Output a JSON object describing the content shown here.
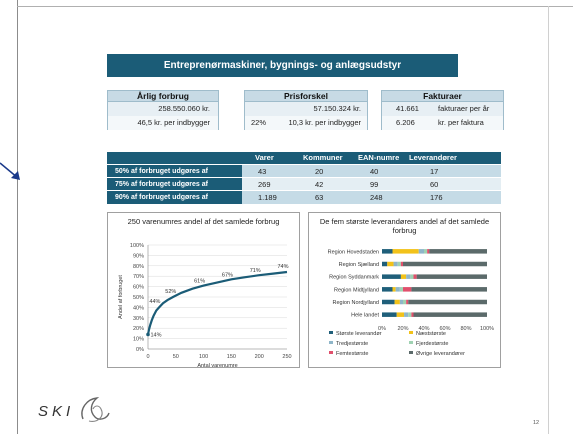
{
  "title": "Entreprenørmaskiner, bygnings- og anlægsudstyr",
  "kpis": {
    "forbrug": {
      "header": "Årlig forbrug",
      "line1_value": "258.550.060 kr.",
      "line2_value": "46,5 kr. per indbygger"
    },
    "prisforskel": {
      "header": "Prisforskel",
      "line1_value": "57.150.324 kr.",
      "line2_pct": "22%",
      "line2_value": "10,3 kr. per indbygger"
    },
    "fakturaer": {
      "header": "Fakturaer",
      "line1_num": "41.661",
      "line1_text": "fakturaer per år",
      "line2_num": "6.206",
      "line2_text": "kr. per faktura"
    }
  },
  "summary": {
    "columns": [
      "Varer",
      "Kommuner",
      "EAN-numre",
      "Leverandører"
    ],
    "rows": [
      {
        "label": "50% af forbruget udgøres af",
        "values": [
          "43",
          "20",
          "40",
          "17"
        ]
      },
      {
        "label": "75% af forbruget udgøres af",
        "values": [
          "269",
          "42",
          "99",
          "60"
        ]
      },
      {
        "label": "90% af forbruget udgøres af",
        "values": [
          "1.189",
          "63",
          "248",
          "176"
        ]
      }
    ]
  },
  "chart_data": [
    {
      "type": "line",
      "title": "250 varenumres andel af det samlede forbrug",
      "xlabel": "Antal varenumre",
      "ylabel": "Andel af forbruget",
      "xlim": [
        0,
        250
      ],
      "ylim": [
        0,
        100
      ],
      "x_ticks": [
        "0",
        "50",
        "100",
        "150",
        "200",
        "250"
      ],
      "y_ticks": [
        "0%",
        "10%",
        "20%",
        "30%",
        "40%",
        "50%",
        "60%",
        "70%",
        "80%",
        "90%",
        "100%"
      ],
      "x": [
        0,
        2,
        4,
        7,
        10,
        15,
        20,
        27,
        35,
        45,
        60,
        80,
        100,
        125,
        150,
        175,
        200,
        225,
        250
      ],
      "y": [
        14,
        19,
        23,
        28,
        32,
        37,
        40,
        44,
        47,
        50,
        54,
        58,
        61,
        64,
        67,
        69,
        71,
        72.5,
        74
      ],
      "labeled_points": [
        {
          "x": 0,
          "y": 14,
          "label": "14%"
        },
        {
          "x": 25,
          "y": 44,
          "label": "44%"
        },
        {
          "x": 50,
          "y": 52,
          "label": "52%"
        },
        {
          "x": 100,
          "y": 61,
          "label": "61%"
        },
        {
          "x": 150,
          "y": 67,
          "label": "67%"
        },
        {
          "x": 200,
          "y": 71,
          "label": "71%"
        },
        {
          "x": 250,
          "y": 74,
          "label": "74%"
        }
      ],
      "colors": {
        "line": "#1b5c77",
        "grid": "#d9d9d9"
      }
    },
    {
      "type": "bar",
      "orientation": "horizontal",
      "stacked": true,
      "title": "De fem største leverandørers andel af det samlede forbrug",
      "categories": [
        "Region Hovedstaden",
        "Region Sjælland",
        "Region Syddanmark",
        "Region Midtjylland",
        "Region Nordjylland",
        "Hele landet"
      ],
      "x_ticks": [
        "0%",
        "20%",
        "40%",
        "60%",
        "80%",
        "100%"
      ],
      "xlim": [
        0,
        100
      ],
      "series": [
        {
          "name": "Største leverandør",
          "color": "#1f5f7a",
          "values": [
            10,
            5,
            18,
            10,
            12,
            14
          ]
        },
        {
          "name": "Næststørste",
          "color": "#f2c21a",
          "values": [
            25,
            6,
            5,
            3,
            5,
            7
          ]
        },
        {
          "name": "Tredjestørste",
          "color": "#8fb6c9",
          "values": [
            5,
            4,
            4,
            4,
            3,
            4
          ]
        },
        {
          "name": "Fjerdestørste",
          "color": "#9fd2b2",
          "values": [
            3,
            3,
            3,
            3,
            3,
            3
          ]
        },
        {
          "name": "Femtestørste",
          "color": "#e0506c",
          "values": [
            2,
            2,
            3,
            8,
            2,
            2
          ]
        },
        {
          "name": "Øvrige leverandører",
          "color": "#5b6a6a",
          "values": [
            55,
            80,
            67,
            72,
            75,
            70
          ]
        }
      ],
      "legend_position": "bottom"
    }
  ],
  "footer": {
    "logo_text": "SKI",
    "page_number": "12"
  }
}
